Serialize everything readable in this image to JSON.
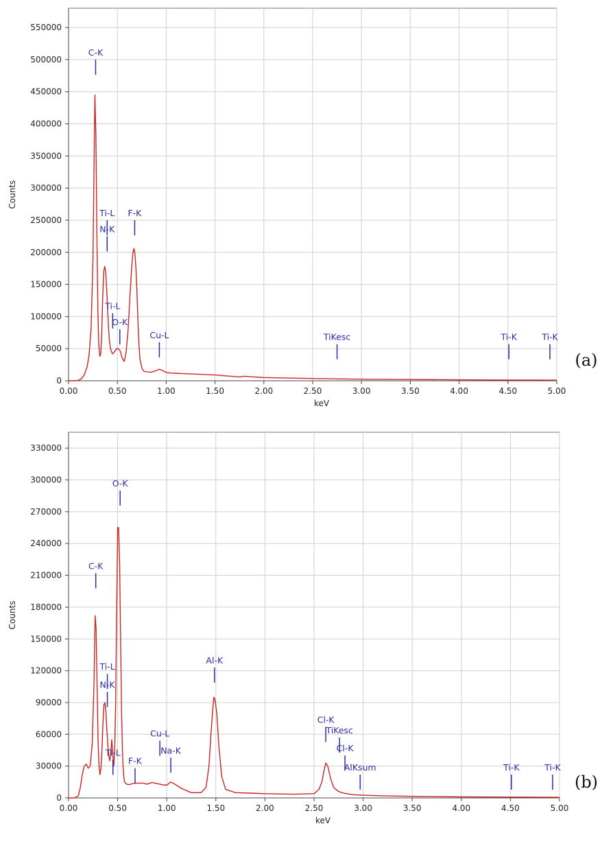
{
  "chart_data": [
    {
      "type": "line",
      "panel_label": "(a)",
      "xlabel": "keV",
      "ylabel": "Counts",
      "xlim": [
        0,
        5
      ],
      "ylim": [
        0,
        580000
      ],
      "grid": true,
      "color": "#cc2222",
      "x_ticks": [
        "0.00",
        "0.50",
        "1.00",
        "1.50",
        "2.00",
        "2.50",
        "3.00",
        "3.50",
        "4.00",
        "4.50",
        "5.00"
      ],
      "y_ticks": [
        "0",
        "50000",
        "100000",
        "150000",
        "200000",
        "250000",
        "300000",
        "350000",
        "400000",
        "450000",
        "500000",
        "550000"
      ],
      "series": [
        {
          "x": [
            0.0,
            0.06,
            0.1,
            0.13,
            0.16,
            0.19,
            0.21,
            0.23,
            0.25,
            0.26,
            0.27,
            0.28,
            0.29,
            0.3,
            0.31,
            0.32,
            0.33,
            0.34,
            0.35,
            0.36,
            0.37,
            0.38,
            0.39,
            0.4,
            0.41,
            0.42,
            0.43,
            0.44,
            0.45,
            0.47,
            0.49,
            0.51,
            0.53,
            0.55,
            0.57,
            0.59,
            0.61,
            0.63,
            0.65,
            0.66,
            0.67,
            0.68,
            0.69,
            0.7,
            0.71,
            0.72,
            0.73,
            0.75,
            0.77,
            0.8,
            0.85,
            0.9,
            0.93,
            0.96,
            1.0,
            1.05,
            1.2,
            1.5,
            1.75,
            1.8,
            2.0,
            2.5,
            3.0,
            3.5,
            4.0,
            4.5,
            5.0
          ],
          "y": [
            0,
            0,
            500,
            3000,
            9000,
            22000,
            40000,
            80000,
            190000,
            320000,
            445000,
            380000,
            230000,
            110000,
            55000,
            38000,
            42000,
            75000,
            130000,
            170000,
            178000,
            170000,
            145000,
            110000,
            80000,
            60000,
            50000,
            45000,
            42000,
            45000,
            50000,
            50000,
            46000,
            35000,
            30000,
            45000,
            80000,
            135000,
            185000,
            200000,
            206000,
            198000,
            175000,
            140000,
            95000,
            60000,
            35000,
            20000,
            15000,
            14000,
            13500,
            16000,
            18000,
            16000,
            13000,
            12000,
            11000,
            9000,
            6000,
            7000,
            5000,
            3500,
            2500,
            2000,
            1500,
            1200,
            1000
          ]
        }
      ],
      "peaks": [
        {
          "label": "C-K",
          "x": 0.277,
          "y": 500000
        },
        {
          "label": "Ti-L",
          "x": 0.395,
          "y": 250000
        },
        {
          "label": "N-K",
          "x": 0.395,
          "y": 225000
        },
        {
          "label": "F-K",
          "x": 0.677,
          "y": 250000
        },
        {
          "label": "Ti-L",
          "x": 0.452,
          "y": 105000
        },
        {
          "label": "O-K",
          "x": 0.525,
          "y": 80000
        },
        {
          "label": "Cu-L",
          "x": 0.93,
          "y": 60000
        },
        {
          "label": "TiKesc",
          "x": 2.75,
          "y": 57000
        },
        {
          "label": "Ti-K",
          "x": 4.51,
          "y": 57000
        },
        {
          "label": "Ti-K",
          "x": 4.93,
          "y": 57000
        }
      ]
    },
    {
      "type": "line",
      "panel_label": "(b)",
      "xlabel": "keV",
      "ylabel": "Counts",
      "xlim": [
        0,
        5
      ],
      "ylim": [
        0,
        345000
      ],
      "grid": true,
      "color": "#cc2222",
      "x_ticks": [
        "0.00",
        "0.50",
        "1.00",
        "1.50",
        "2.00",
        "2.50",
        "3.00",
        "3.50",
        "4.00",
        "4.50",
        "5.00"
      ],
      "y_ticks": [
        "0",
        "30000",
        "60000",
        "90000",
        "120000",
        "150000",
        "180000",
        "210000",
        "240000",
        "270000",
        "300000",
        "330000"
      ],
      "series": [
        {
          "x": [
            0.0,
            0.06,
            0.1,
            0.12,
            0.14,
            0.16,
            0.18,
            0.2,
            0.22,
            0.24,
            0.26,
            0.27,
            0.28,
            0.29,
            0.3,
            0.31,
            0.32,
            0.33,
            0.34,
            0.35,
            0.36,
            0.37,
            0.38,
            0.39,
            0.4,
            0.41,
            0.42,
            0.43,
            0.44,
            0.45,
            0.46,
            0.47,
            0.48,
            0.49,
            0.5,
            0.51,
            0.52,
            0.53,
            0.54,
            0.55,
            0.56,
            0.57,
            0.59,
            0.62,
            0.65,
            0.7,
            0.75,
            0.8,
            0.85,
            0.9,
            0.95,
            1.0,
            1.04,
            1.08,
            1.15,
            1.25,
            1.35,
            1.4,
            1.43,
            1.45,
            1.47,
            1.48,
            1.49,
            1.51,
            1.53,
            1.56,
            1.6,
            1.7,
            1.85,
            2.0,
            2.3,
            2.5,
            2.55,
            2.58,
            2.6,
            2.62,
            2.64,
            2.67,
            2.7,
            2.75,
            2.8,
            2.9,
            3.0,
            3.2,
            3.5,
            4.0,
            4.5,
            5.0
          ],
          "y": [
            0,
            0,
            2000,
            10000,
            22000,
            30000,
            32000,
            28000,
            30000,
            50000,
            110000,
            172000,
            160000,
            110000,
            55000,
            30000,
            22000,
            28000,
            45000,
            70000,
            88000,
            90000,
            82000,
            65000,
            50000,
            40000,
            35000,
            42000,
            55000,
            42000,
            30000,
            45000,
            90000,
            180000,
            255000,
            255000,
            220000,
            150000,
            80000,
            40000,
            22000,
            15000,
            13000,
            12500,
            13500,
            14000,
            14000,
            13000,
            14500,
            13500,
            12500,
            12000,
            15000,
            13000,
            9000,
            5000,
            5000,
            10000,
            30000,
            60000,
            85000,
            95000,
            93000,
            80000,
            50000,
            20000,
            8000,
            5000,
            4500,
            4000,
            3500,
            4000,
            8000,
            15000,
            25000,
            33000,
            30000,
            18000,
            10000,
            6000,
            4500,
            3000,
            2500,
            2000,
            1500,
            1000,
            800,
            600
          ]
        }
      ],
      "peaks": [
        {
          "label": "O-K",
          "x": 0.525,
          "y": 290000
        },
        {
          "label": "C-K",
          "x": 0.277,
          "y": 212000
        },
        {
          "label": "Ti-L",
          "x": 0.395,
          "y": 117000
        },
        {
          "label": "N-K",
          "x": 0.395,
          "y": 100000
        },
        {
          "label": "Al-K",
          "x": 1.486,
          "y": 123000
        },
        {
          "label": "Cu-L",
          "x": 0.93,
          "y": 54000
        },
        {
          "label": "Na-K",
          "x": 1.041,
          "y": 38000
        },
        {
          "label": "Ti-L",
          "x": 0.452,
          "y": 36000
        },
        {
          "label": "F-K",
          "x": 0.677,
          "y": 28000
        },
        {
          "label": "Cl-K",
          "x": 2.62,
          "y": 67000
        },
        {
          "label": "TiKesc",
          "x": 2.76,
          "y": 57000
        },
        {
          "label": "Cl-K",
          "x": 2.815,
          "y": 40000
        },
        {
          "label": "AlKsum",
          "x": 2.97,
          "y": 22000
        },
        {
          "label": "Ti-K",
          "x": 4.51,
          "y": 22000
        },
        {
          "label": "Ti-K",
          "x": 4.93,
          "y": 22000
        }
      ]
    }
  ]
}
